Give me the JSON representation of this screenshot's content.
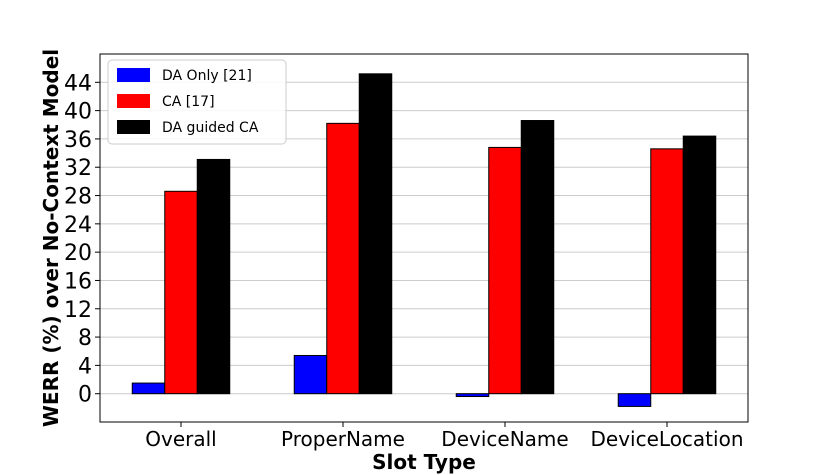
{
  "chart_data": {
    "type": "bar",
    "title": "",
    "xlabel": "Slot Type",
    "ylabel": "WERR (%) over No-Context Model",
    "categories": [
      "Overall",
      "ProperName",
      "DeviceName",
      "DeviceLocation"
    ],
    "series": [
      {
        "name": "DA Only [21]",
        "color": "#0000ff",
        "values": [
          1.5,
          5.4,
          -0.4,
          -1.8
        ]
      },
      {
        "name": "CA [17]",
        "color": "#ff0000",
        "values": [
          28.6,
          38.2,
          34.8,
          34.6
        ]
      },
      {
        "name": "DA guided CA",
        "color": "#000000",
        "values": [
          33.1,
          45.2,
          38.6,
          36.4
        ]
      }
    ],
    "yticks": [
      0,
      4,
      8,
      12,
      16,
      20,
      24,
      28,
      32,
      36,
      40,
      44
    ],
    "ylim": [
      -4,
      48
    ],
    "grid": "horizontal",
    "legend_position": "top-left"
  }
}
